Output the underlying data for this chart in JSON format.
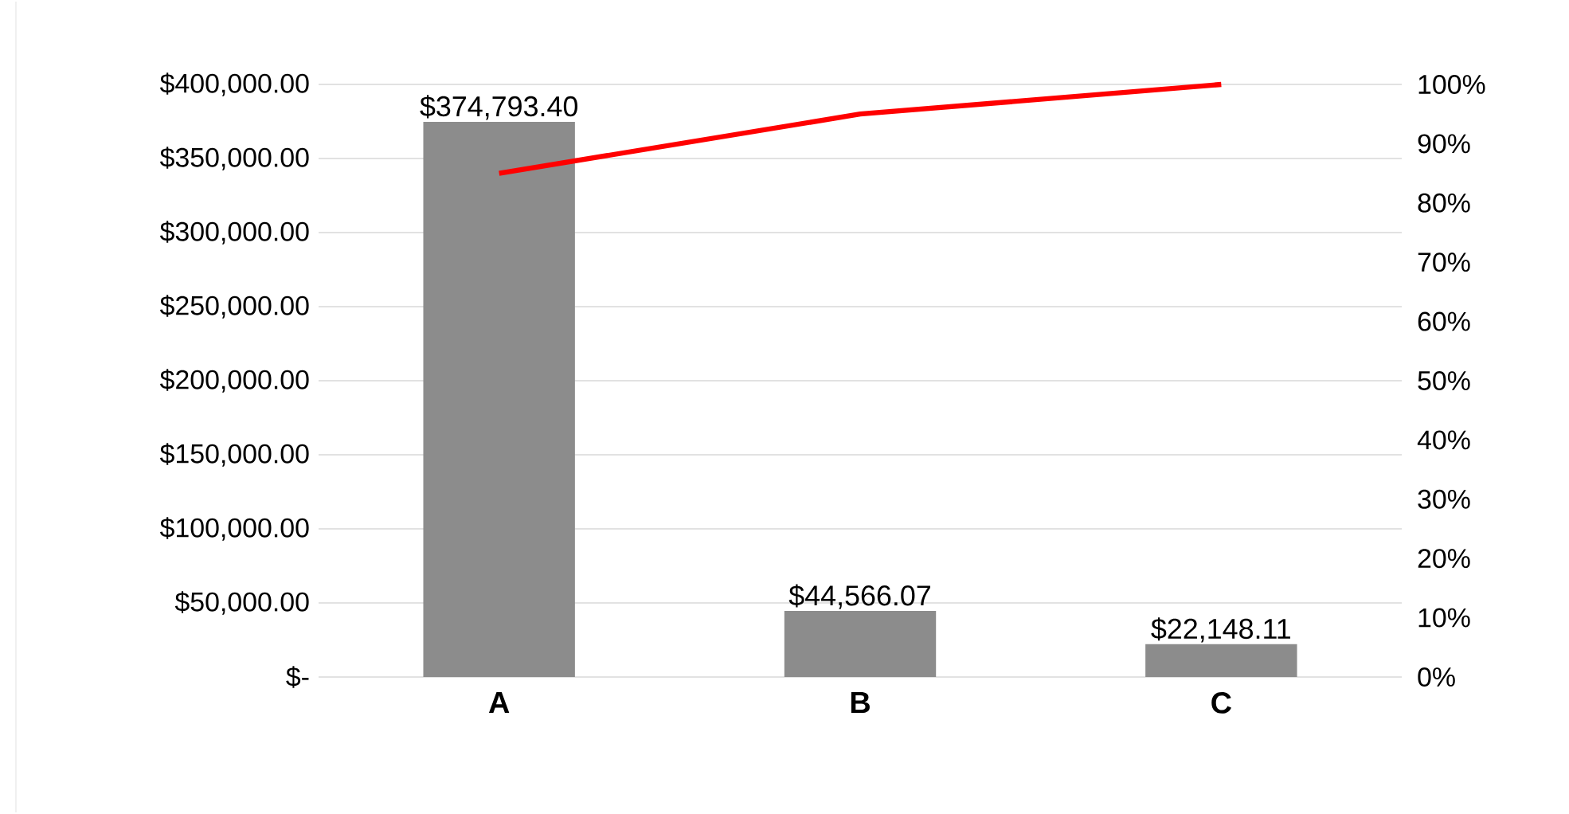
{
  "chart_data": {
    "type": "bar",
    "categories": [
      "A",
      "B",
      "C"
    ],
    "series": [
      {
        "color": "#8c8c8c",
        "values": [
          374793.4,
          44566.07,
          22148.11
        ],
        "value_labels": [
          "$374,793.40",
          "$44,566.07",
          "$22,148.11"
        ]
      },
      {
        "type": "line",
        "axis": "y2",
        "color": "#ff0000",
        "values": [
          85,
          95,
          100
        ]
      }
    ],
    "ylim": [
      0,
      400000
    ],
    "yticks": [
      {
        "value": 0,
        "label": "$-"
      },
      {
        "value": 50000,
        "label": "$50,000.00"
      },
      {
        "value": 100000,
        "label": "$100,000.00"
      },
      {
        "value": 150000,
        "label": "$150,000.00"
      },
      {
        "value": 200000,
        "label": "$200,000.00"
      },
      {
        "value": 250000,
        "label": "$250,000.00"
      },
      {
        "value": 300000,
        "label": "$300,000.00"
      },
      {
        "value": 350000,
        "label": "$350,000.00"
      },
      {
        "value": 400000,
        "label": "$400,000.00"
      }
    ],
    "y2lim": [
      0,
      100
    ],
    "y2ticks": [
      {
        "value": 0,
        "label": "0%"
      },
      {
        "value": 10,
        "label": "10%"
      },
      {
        "value": 20,
        "label": "20%"
      },
      {
        "value": 30,
        "label": "30%"
      },
      {
        "value": 40,
        "label": "40%"
      },
      {
        "value": 50,
        "label": "50%"
      },
      {
        "value": 60,
        "label": "60%"
      },
      {
        "value": 70,
        "label": "70%"
      },
      {
        "value": 80,
        "label": "80%"
      },
      {
        "value": 90,
        "label": "90%"
      },
      {
        "value": 100,
        "label": "100%"
      }
    ],
    "grid": "y"
  }
}
